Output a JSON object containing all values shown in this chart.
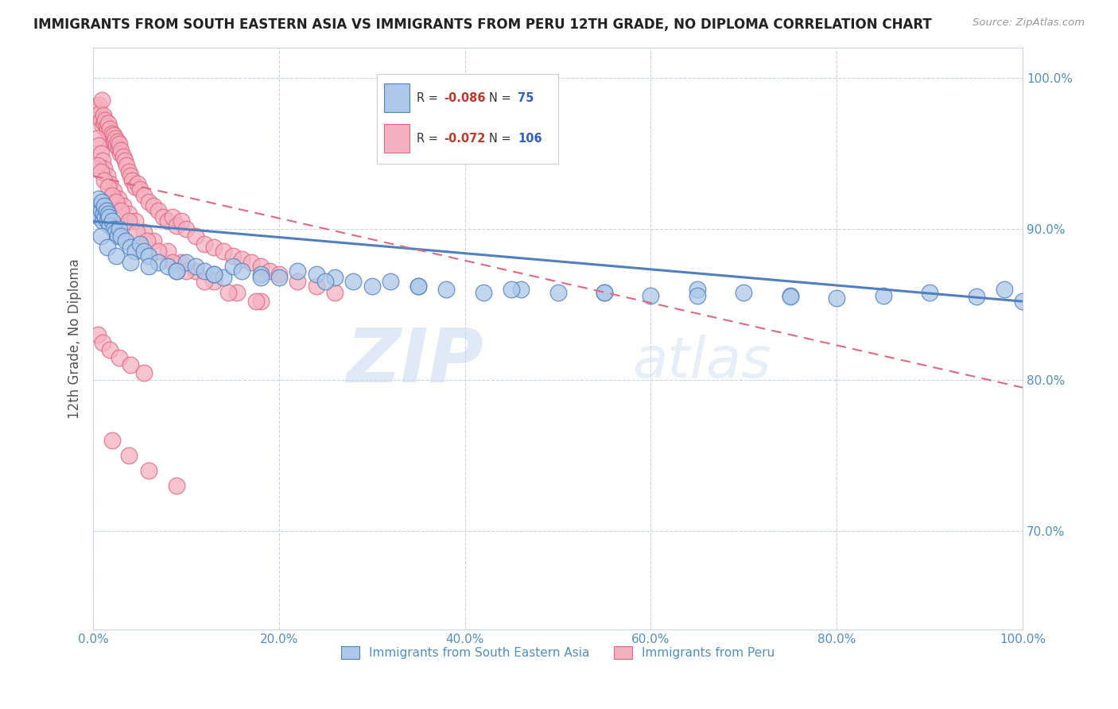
{
  "title": "IMMIGRANTS FROM SOUTH EASTERN ASIA VS IMMIGRANTS FROM PERU 12TH GRADE, NO DIPLOMA CORRELATION CHART",
  "source": "Source: ZipAtlas.com",
  "ylabel": "12th Grade, No Diploma",
  "legend_label_blue": "Immigrants from South Eastern Asia",
  "legend_label_pink": "Immigrants from Peru",
  "R_blue": -0.086,
  "N_blue": 75,
  "R_pink": -0.072,
  "N_pink": 106,
  "xlim": [
    0.0,
    1.0
  ],
  "ylim": [
    0.635,
    1.02
  ],
  "xtick_labels": [
    "0.0%",
    "20.0%",
    "40.0%",
    "60.0%",
    "80.0%",
    "100.0%"
  ],
  "xtick_positions": [
    0.0,
    0.2,
    0.4,
    0.6,
    0.8,
    1.0
  ],
  "ytick_labels": [
    "70.0%",
    "80.0%",
    "90.0%",
    "100.0%"
  ],
  "ytick_positions": [
    0.7,
    0.8,
    0.9,
    1.0
  ],
  "color_blue": "#adc8e8",
  "color_pink": "#f5b0c0",
  "line_color_blue": "#5080c0",
  "line_color_pink": "#e06880",
  "background_color": "#ffffff",
  "grid_color": "#c8d4e8",
  "watermark_zip": "ZIP",
  "watermark_atlas": "atlas",
  "blue_trend_x0": 0.0,
  "blue_trend_y0": 0.905,
  "blue_trend_x1": 1.0,
  "blue_trend_y1": 0.852,
  "pink_trend_x0": 0.0,
  "pink_trend_y0": 0.935,
  "pink_trend_x1": 1.0,
  "pink_trend_y1": 0.795,
  "blue_points_x": [
    0.003,
    0.005,
    0.006,
    0.007,
    0.008,
    0.009,
    0.01,
    0.011,
    0.012,
    0.013,
    0.014,
    0.015,
    0.016,
    0.017,
    0.018,
    0.02,
    0.022,
    0.024,
    0.026,
    0.028,
    0.03,
    0.035,
    0.04,
    0.045,
    0.05,
    0.055,
    0.06,
    0.07,
    0.08,
    0.09,
    0.1,
    0.11,
    0.12,
    0.13,
    0.14,
    0.15,
    0.16,
    0.18,
    0.2,
    0.22,
    0.24,
    0.26,
    0.28,
    0.3,
    0.32,
    0.35,
    0.38,
    0.42,
    0.46,
    0.5,
    0.55,
    0.6,
    0.65,
    0.7,
    0.75,
    0.8,
    0.85,
    0.9,
    0.95,
    0.98,
    0.008,
    0.015,
    0.025,
    0.04,
    0.06,
    0.09,
    0.13,
    0.18,
    0.25,
    0.35,
    0.45,
    0.55,
    0.65,
    0.75,
    1.0
  ],
  "blue_points_y": [
    0.91,
    0.915,
    0.92,
    0.908,
    0.912,
    0.918,
    0.905,
    0.91,
    0.915,
    0.908,
    0.912,
    0.905,
    0.91,
    0.908,
    0.902,
    0.905,
    0.9,
    0.898,
    0.895,
    0.9,
    0.895,
    0.892,
    0.888,
    0.885,
    0.89,
    0.885,
    0.882,
    0.878,
    0.875,
    0.872,
    0.878,
    0.875,
    0.872,
    0.87,
    0.868,
    0.875,
    0.872,
    0.87,
    0.868,
    0.872,
    0.87,
    0.868,
    0.865,
    0.862,
    0.865,
    0.862,
    0.86,
    0.858,
    0.86,
    0.858,
    0.858,
    0.856,
    0.86,
    0.858,
    0.856,
    0.854,
    0.856,
    0.858,
    0.855,
    0.86,
    0.895,
    0.888,
    0.882,
    0.878,
    0.875,
    0.872,
    0.87,
    0.868,
    0.865,
    0.862,
    0.86,
    0.858,
    0.856,
    0.855,
    0.852
  ],
  "pink_points_x": [
    0.003,
    0.004,
    0.005,
    0.006,
    0.007,
    0.008,
    0.009,
    0.01,
    0.011,
    0.012,
    0.013,
    0.014,
    0.015,
    0.016,
    0.017,
    0.018,
    0.019,
    0.02,
    0.021,
    0.022,
    0.023,
    0.024,
    0.025,
    0.026,
    0.027,
    0.028,
    0.029,
    0.03,
    0.032,
    0.034,
    0.036,
    0.038,
    0.04,
    0.042,
    0.045,
    0.048,
    0.05,
    0.055,
    0.06,
    0.065,
    0.07,
    0.075,
    0.08,
    0.085,
    0.09,
    0.095,
    0.1,
    0.11,
    0.12,
    0.13,
    0.14,
    0.15,
    0.16,
    0.17,
    0.18,
    0.19,
    0.2,
    0.22,
    0.24,
    0.26,
    0.004,
    0.006,
    0.008,
    0.01,
    0.012,
    0.015,
    0.018,
    0.022,
    0.027,
    0.032,
    0.038,
    0.045,
    0.055,
    0.065,
    0.08,
    0.095,
    0.11,
    0.13,
    0.155,
    0.18,
    0.005,
    0.008,
    0.012,
    0.016,
    0.02,
    0.025,
    0.03,
    0.038,
    0.047,
    0.058,
    0.07,
    0.085,
    0.1,
    0.12,
    0.145,
    0.175,
    0.005,
    0.01,
    0.018,
    0.028,
    0.04,
    0.055,
    0.02,
    0.038,
    0.06,
    0.09
  ],
  "pink_points_y": [
    0.975,
    0.98,
    0.978,
    0.982,
    0.976,
    0.972,
    0.985,
    0.968,
    0.975,
    0.97,
    0.972,
    0.968,
    0.965,
    0.97,
    0.962,
    0.966,
    0.96,
    0.963,
    0.958,
    0.962,
    0.958,
    0.96,
    0.955,
    0.958,
    0.953,
    0.956,
    0.95,
    0.952,
    0.948,
    0.945,
    0.942,
    0.938,
    0.935,
    0.932,
    0.928,
    0.93,
    0.926,
    0.922,
    0.918,
    0.915,
    0.912,
    0.908,
    0.905,
    0.908,
    0.902,
    0.905,
    0.9,
    0.895,
    0.89,
    0.888,
    0.885,
    0.882,
    0.88,
    0.878,
    0.875,
    0.872,
    0.87,
    0.865,
    0.862,
    0.858,
    0.96,
    0.955,
    0.95,
    0.945,
    0.94,
    0.935,
    0.93,
    0.925,
    0.92,
    0.915,
    0.91,
    0.905,
    0.898,
    0.892,
    0.885,
    0.878,
    0.872,
    0.865,
    0.858,
    0.852,
    0.942,
    0.938,
    0.932,
    0.928,
    0.922,
    0.918,
    0.912,
    0.905,
    0.898,
    0.892,
    0.885,
    0.878,
    0.872,
    0.865,
    0.858,
    0.852,
    0.83,
    0.825,
    0.82,
    0.815,
    0.81,
    0.805,
    0.76,
    0.75,
    0.74,
    0.73
  ]
}
